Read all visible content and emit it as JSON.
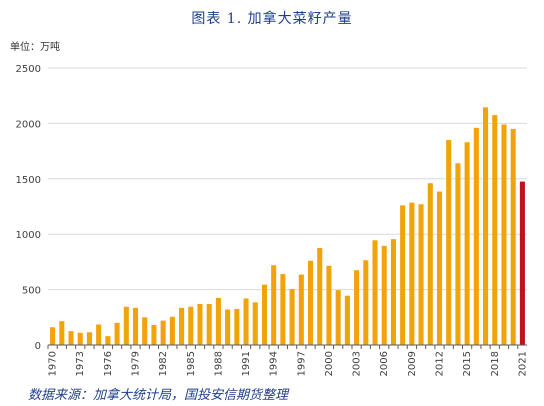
{
  "title": "图表 1.  加拿大菜籽产量",
  "unit_label": "单位：万吨",
  "source": "数据来源：加拿大统计局，国投安信期货整理",
  "colors": {
    "bar": "#F0A30A",
    "highlight": "#C0121B",
    "grid": "#d9d9d9",
    "axis": "#595959"
  },
  "chart_data": {
    "type": "bar",
    "title": "加拿大菜籽产量",
    "xlabel": "",
    "ylabel": "",
    "ylim": [
      0,
      2500
    ],
    "yticks": [
      0,
      500,
      1000,
      1500,
      2000,
      2500
    ],
    "grid": true,
    "legend": "none",
    "categories": [
      "1970",
      "1971",
      "1972",
      "1973",
      "1974",
      "1975",
      "1976",
      "1977",
      "1978",
      "1979",
      "1980",
      "1981",
      "1982",
      "1983",
      "1984",
      "1985",
      "1986",
      "1987",
      "1988",
      "1989",
      "1990",
      "1991",
      "1992",
      "1993",
      "1994",
      "1995",
      "1996",
      "1997",
      "1998",
      "1999",
      "2000",
      "2001",
      "2002",
      "2003",
      "2004",
      "2005",
      "2006",
      "2007",
      "2008",
      "2009",
      "2010",
      "2011",
      "2012",
      "2013",
      "2014",
      "2015",
      "2016",
      "2017",
      "2018",
      "2019",
      "2020",
      "2021"
    ],
    "xtick_labels": [
      "1970",
      "1973",
      "1976",
      "1979",
      "1982",
      "1985",
      "1988",
      "1991",
      "1994",
      "1997",
      "2000",
      "2003",
      "2006",
      "2009",
      "2012",
      "2015",
      "2018",
      "2021"
    ],
    "values": [
      160,
      215,
      125,
      110,
      115,
      185,
      80,
      200,
      345,
      335,
      250,
      180,
      220,
      255,
      335,
      345,
      370,
      370,
      425,
      320,
      325,
      420,
      385,
      545,
      720,
      640,
      505,
      635,
      760,
      875,
      715,
      495,
      445,
      675,
      765,
      945,
      895,
      955,
      1260,
      1285,
      1270,
      1460,
      1385,
      1850,
      1640,
      1830,
      1960,
      2145,
      2075,
      1990,
      1950,
      1475
    ],
    "highlight_index": 51
  }
}
